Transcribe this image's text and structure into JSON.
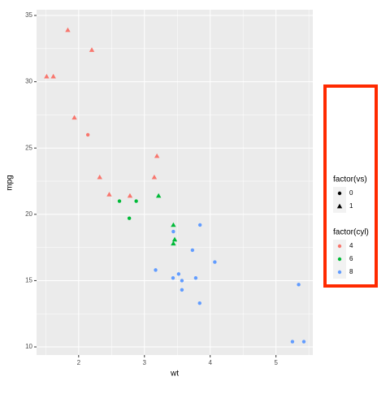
{
  "chart_data": {
    "type": "scatter",
    "x_label": "wt",
    "y_label": "mpg",
    "x": [
      2.62,
      2.875,
      2.32,
      3.215,
      3.44,
      3.46,
      3.57,
      3.19,
      3.15,
      3.44,
      3.44,
      4.07,
      3.73,
      3.78,
      5.25,
      5.424,
      5.345,
      2.2,
      1.615,
      1.835,
      2.465,
      3.52,
      3.435,
      3.84,
      3.845,
      1.935,
      2.14,
      1.513,
      3.17,
      2.77,
      3.57,
      2.78
    ],
    "values": [
      21.0,
      21.0,
      22.8,
      21.4,
      18.7,
      18.1,
      14.3,
      24.4,
      22.8,
      19.2,
      17.8,
      16.4,
      17.3,
      15.2,
      10.4,
      10.4,
      14.7,
      32.4,
      30.4,
      33.9,
      21.5,
      15.5,
      15.2,
      13.3,
      19.2,
      27.3,
      26.0,
      30.4,
      15.8,
      19.7,
      15.0,
      21.4
    ],
    "cyl": [
      6,
      6,
      4,
      6,
      8,
      6,
      8,
      4,
      4,
      6,
      6,
      8,
      8,
      8,
      8,
      8,
      8,
      4,
      4,
      4,
      4,
      8,
      8,
      8,
      8,
      4,
      4,
      4,
      8,
      6,
      8,
      4
    ],
    "vs": [
      0,
      0,
      1,
      1,
      0,
      1,
      0,
      1,
      1,
      1,
      1,
      0,
      0,
      0,
      0,
      0,
      0,
      1,
      1,
      1,
      1,
      0,
      0,
      0,
      0,
      1,
      0,
      1,
      0,
      0,
      0,
      1
    ],
    "xlim": [
      1.36,
      5.56
    ],
    "ylim": [
      9.39,
      35.43
    ],
    "xticks": [
      2,
      3,
      4,
      5
    ],
    "yticks": [
      10,
      15,
      20,
      25,
      30,
      35
    ],
    "grid": true,
    "legends": [
      {
        "title": "factor(vs)",
        "entries": [
          {
            "label": "0",
            "shape": "circle"
          },
          {
            "label": "1",
            "shape": "triangle"
          }
        ]
      },
      {
        "title": "factor(cyl)",
        "entries": [
          {
            "label": "4",
            "color": "#F8766D"
          },
          {
            "label": "6",
            "color": "#00BA38"
          },
          {
            "label": "8",
            "color": "#619CFF"
          }
        ]
      }
    ]
  }
}
